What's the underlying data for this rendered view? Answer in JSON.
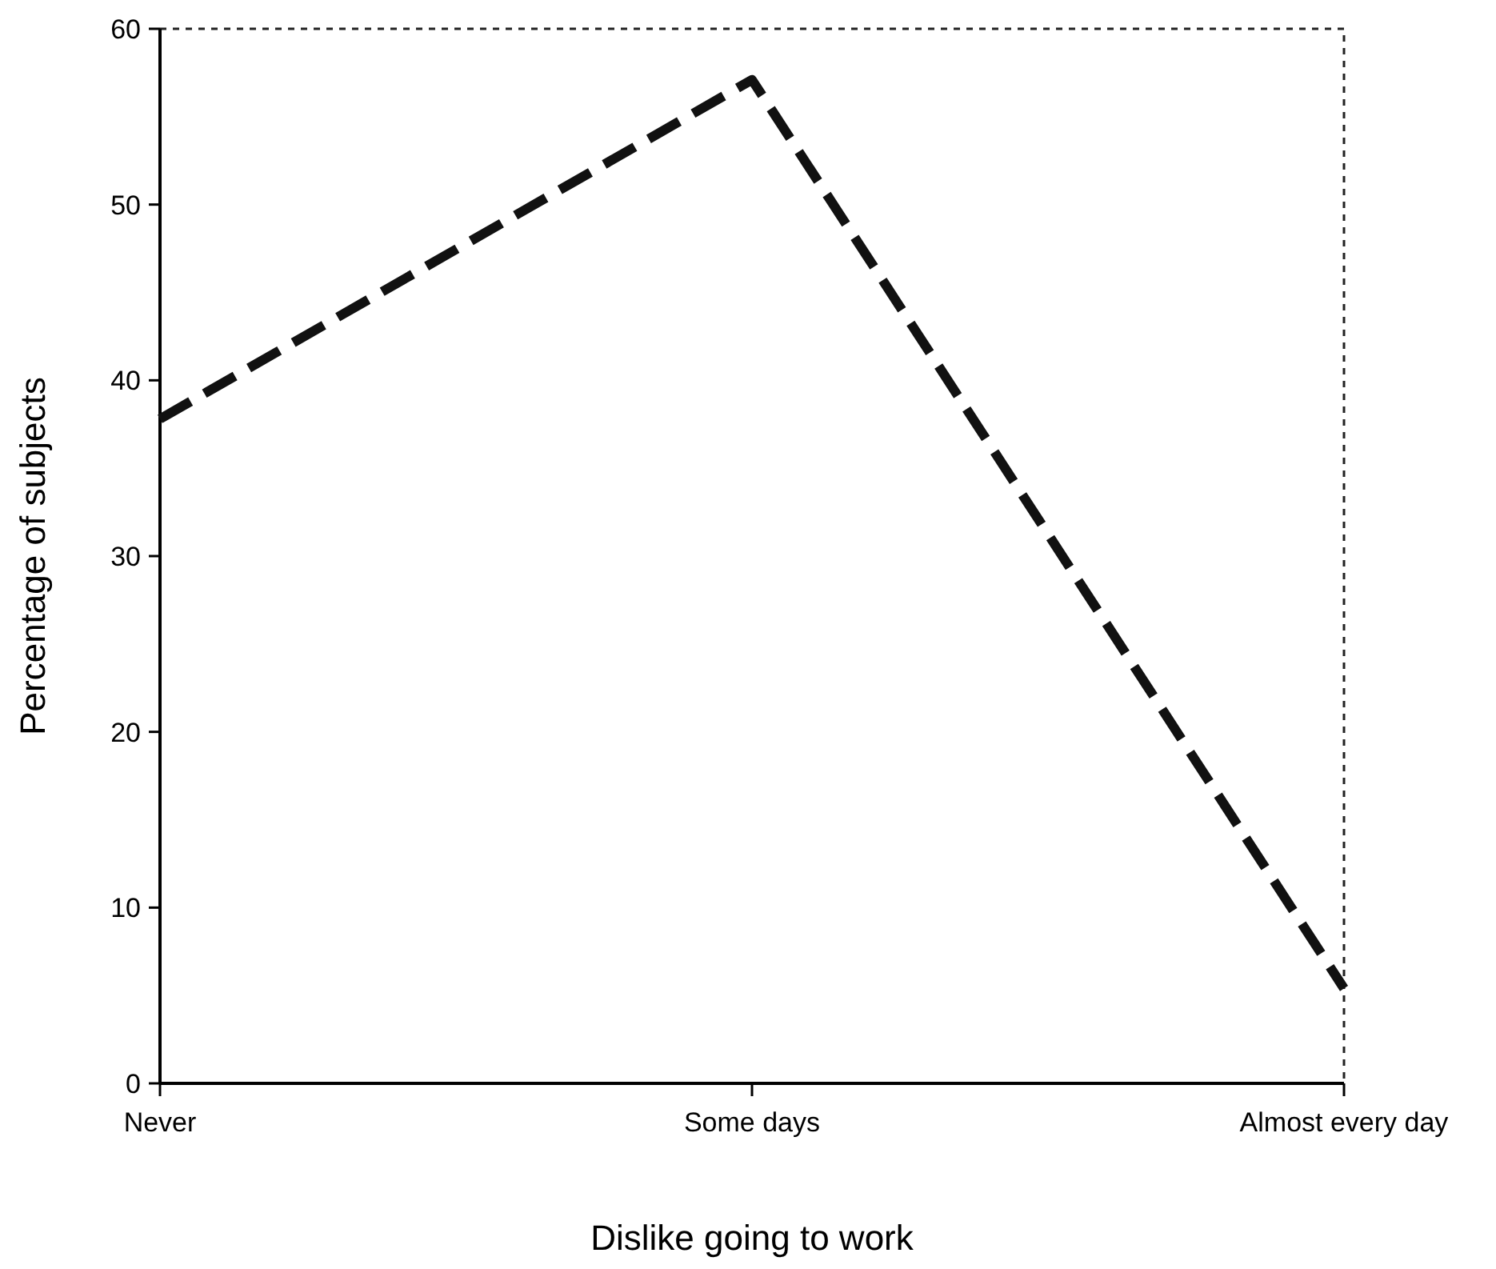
{
  "chart_data": {
    "type": "line",
    "xlabel": "Dislike going to work",
    "ylabel": "Percentage of subjects",
    "categories": [
      "Never",
      "Some days",
      "Almost every day"
    ],
    "series": [
      {
        "color": "#111111",
        "values": [
          37.8,
          57.1,
          5.4
        ]
      }
    ],
    "ylim": [
      0,
      60
    ],
    "yticks": [
      0,
      10,
      20,
      30,
      40,
      50,
      60
    ],
    "line_style": "dashed",
    "marker": "none",
    "grid": false
  }
}
